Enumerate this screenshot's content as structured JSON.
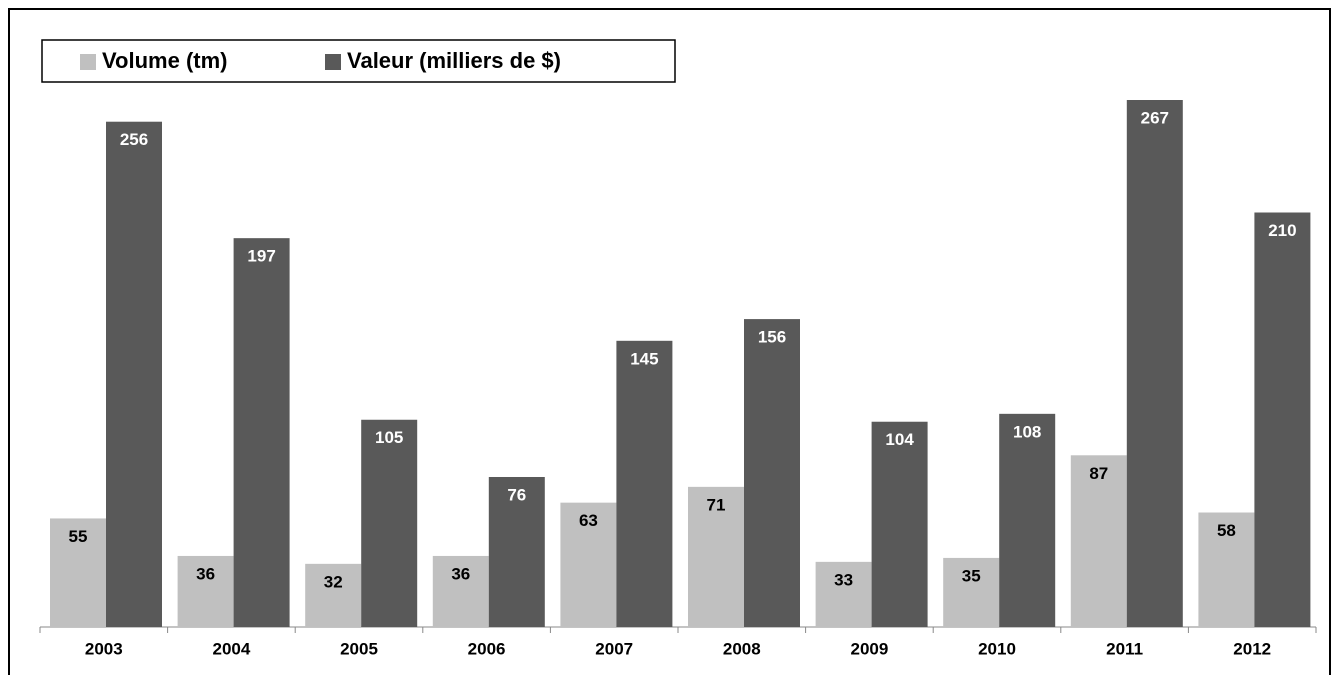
{
  "chart_data": {
    "type": "bar",
    "categories": [
      "2003",
      "2004",
      "2005",
      "2006",
      "2007",
      "2008",
      "2009",
      "2010",
      "2011",
      "2012"
    ],
    "series": [
      {
        "name": "Volume (tm)",
        "color": "#c0c0c0",
        "values": [
          55,
          36,
          32,
          36,
          63,
          71,
          33,
          35,
          87,
          58
        ]
      },
      {
        "name": "Valeur (milliers de $)",
        "color": "#595959",
        "values": [
          256,
          197,
          105,
          76,
          145,
          156,
          104,
          108,
          267,
          210
        ]
      }
    ],
    "legend": "top-left"
  }
}
